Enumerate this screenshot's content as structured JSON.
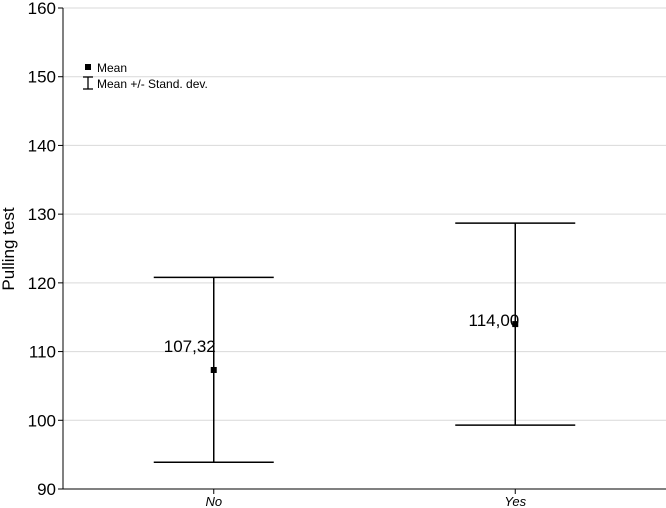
{
  "chart_data": {
    "type": "errorbar",
    "categories": [
      "No",
      "Yes"
    ],
    "mean": [
      107.32,
      114.0
    ],
    "upper": [
      120.8,
      128.7
    ],
    "lower": [
      93.9,
      99.3
    ],
    "data_labels": [
      "107,32",
      "114,00"
    ],
    "ylabel": "Pulling test",
    "xlabel": "",
    "ylim": [
      90,
      160
    ],
    "yticks": [
      90,
      100,
      110,
      120,
      130,
      140,
      150,
      160
    ],
    "grid": "horizontal",
    "legend": {
      "placement": "top-left",
      "items": [
        {
          "label": "Mean",
          "marker": "square"
        },
        {
          "label": "Mean +/- Stand. dev.",
          "marker": "whisker"
        }
      ]
    },
    "colors": {
      "mark": "#000000",
      "grid": "#d9d9d9",
      "axis": "#000000"
    }
  }
}
